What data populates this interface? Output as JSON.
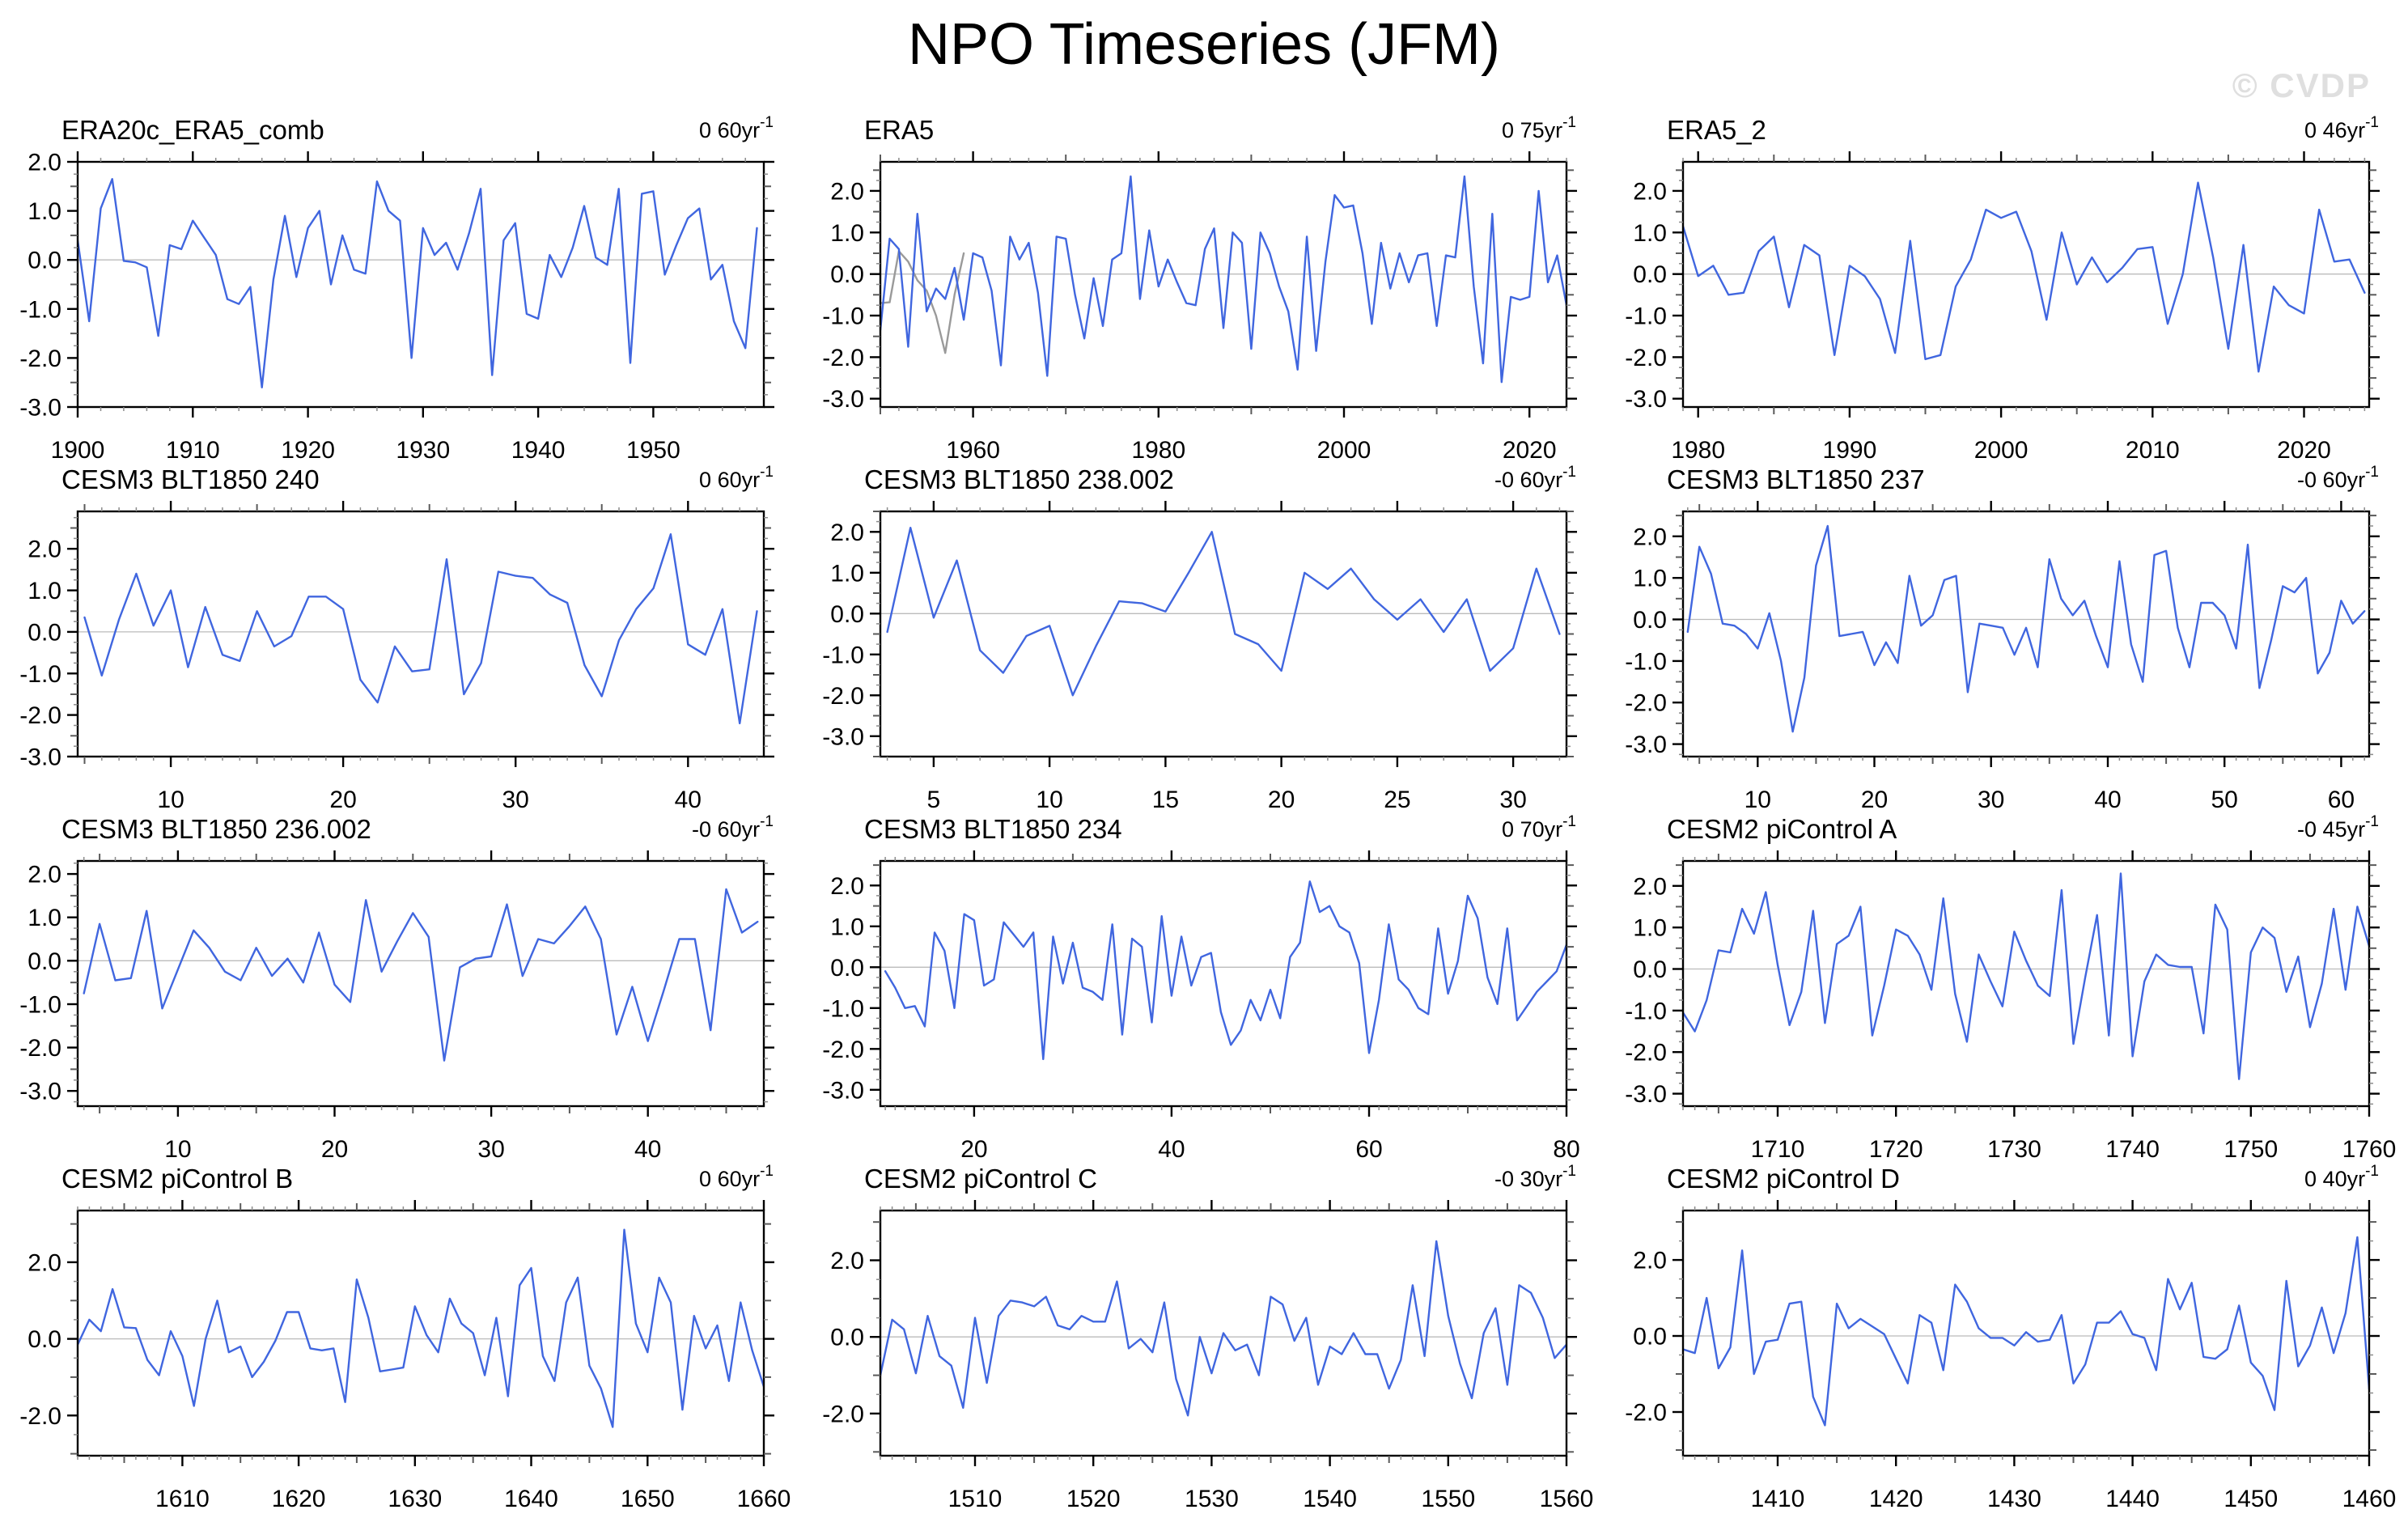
{
  "header": {
    "title": "NPO Timeseries (JFM)",
    "watermark": "© CVDP"
  },
  "colors": {
    "line": "#4066DF",
    "line_secondary": "#9A9A9A",
    "zero_line": "#BBBBBB",
    "axis": "#000000",
    "tick_minor": "#8C8C8C",
    "tick_medium": "#5A5A5A",
    "text": "#000000",
    "watermark": "#DFDFDF",
    "background": "#FFFFFF"
  },
  "chart_data": [
    {
      "type": "line",
      "title": "ERA20c_ERA5_comb",
      "annotation": "0 60yr",
      "annotation_sup": "-1",
      "x_start": 1900,
      "xlim": [
        1900,
        1959.6
      ],
      "ylim": [
        -3.0,
        2.0
      ],
      "x_ticks": [
        1900,
        1910,
        1920,
        1930,
        1940,
        1950
      ],
      "x_minor_step": 2,
      "x_medium_step": null,
      "y_ticks": [
        2,
        1,
        0,
        -1,
        -2,
        -3
      ],
      "y_tick_labels": [
        "2.0",
        "1.0",
        "0.0",
        "-1.0",
        "-2.0",
        "-3.0"
      ],
      "y_minor_step": 0.25,
      "y_medium_step": 0.5,
      "values": [
        0.4,
        -1.25,
        1.05,
        1.65,
        -0.02,
        -0.05,
        -0.15,
        -1.55,
        0.3,
        0.22,
        0.8,
        0.45,
        0.1,
        -0.8,
        -0.9,
        -0.55,
        -2.6,
        -0.4,
        0.9,
        -0.35,
        0.65,
        1.0,
        -0.5,
        0.5,
        -0.2,
        -0.28,
        1.6,
        1.0,
        0.8,
        -2.0,
        0.65,
        0.1,
        0.35,
        -0.2,
        0.55,
        1.45,
        -2.35,
        0.4,
        0.75,
        -1.1,
        -1.2,
        0.1,
        -0.35,
        0.25,
        1.1,
        0.05,
        -0.1,
        1.45,
        -2.1,
        1.35,
        1.4,
        -0.3,
        0.3,
        0.85,
        1.05,
        -0.4,
        -0.1,
        -1.25,
        -1.8,
        0.65
      ]
    },
    {
      "type": "line",
      "title": "ERA5",
      "annotation": "0 75yr",
      "annotation_sup": "-1",
      "x_start": 1950,
      "xlim": [
        1950,
        2024
      ],
      "ylim": [
        -3.2,
        2.7
      ],
      "x_ticks": [
        1960,
        1980,
        2000,
        2020
      ],
      "x_minor_step": 2,
      "x_medium_step": 10,
      "y_ticks": [
        2,
        1,
        0,
        -1,
        -2,
        -3
      ],
      "y_tick_labels": [
        "2.0",
        "1.0",
        "0.0",
        "-1.0",
        "-2.0",
        "-3.0"
      ],
      "y_minor_step": 0.25,
      "y_medium_step": 0.5,
      "values": [
        -1.35,
        0.85,
        0.6,
        -1.75,
        1.45,
        -0.9,
        -0.35,
        -0.6,
        0.15,
        -1.1,
        0.5,
        0.4,
        -0.4,
        -2.2,
        0.9,
        0.35,
        0.75,
        -0.45,
        -2.45,
        0.9,
        0.85,
        -0.5,
        -1.55,
        -0.1,
        -1.25,
        0.35,
        0.5,
        2.35,
        -0.6,
        1.05,
        -0.3,
        0.35,
        -0.2,
        -0.7,
        -0.75,
        0.6,
        1.1,
        -1.3,
        1.0,
        0.75,
        -1.8,
        1.0,
        0.5,
        -0.3,
        -0.9,
        -2.3,
        0.9,
        -1.85,
        0.3,
        1.9,
        1.6,
        1.65,
        0.5,
        -1.2,
        0.75,
        -0.35,
        0.5,
        -0.2,
        0.45,
        0.5,
        -1.25,
        0.45,
        0.4,
        2.35,
        -0.3,
        -2.15,
        1.45,
        -2.6,
        -0.55,
        -0.62,
        -0.55,
        2.0,
        -0.2,
        0.45,
        -0.75
      ],
      "series2": {
        "x_start": 1950,
        "values": [
          -0.7,
          -0.68,
          0.55,
          0.3,
          -0.15,
          -0.4,
          -1.0,
          -1.9,
          -0.5,
          0.5
        ]
      }
    },
    {
      "type": "line",
      "title": "ERA5_2",
      "annotation": "0 46yr",
      "annotation_sup": "-1",
      "x_start": 1979,
      "xlim": [
        1979,
        2024.3
      ],
      "ylim": [
        -3.2,
        2.7
      ],
      "x_ticks": [
        1980,
        1990,
        2000,
        2010,
        2020
      ],
      "x_minor_step": 1,
      "x_medium_step": 5,
      "y_ticks": [
        2,
        1,
        0,
        -1,
        -2,
        -3
      ],
      "y_tick_labels": [
        "2.0",
        "1.0",
        "0.0",
        "-1.0",
        "-2.0",
        "-3.0"
      ],
      "y_minor_step": 0.25,
      "y_medium_step": 0.5,
      "values": [
        1.15,
        -0.05,
        0.2,
        -0.5,
        -0.45,
        0.55,
        0.9,
        -0.8,
        0.7,
        0.45,
        -1.95,
        0.2,
        -0.05,
        -0.6,
        -1.9,
        0.8,
        -2.05,
        -1.95,
        -0.3,
        0.35,
        1.55,
        1.35,
        1.5,
        0.55,
        -1.1,
        1.0,
        -0.25,
        0.4,
        -0.2,
        0.15,
        0.6,
        0.65,
        -1.2,
        0.0,
        2.2,
        0.4,
        -1.8,
        0.7,
        -2.35,
        -0.3,
        -0.75,
        -0.95,
        1.55,
        0.3,
        0.35,
        -0.45
      ]
    },
    {
      "type": "line",
      "title": "CESM3 BLT1850 240",
      "annotation": "0 60yr",
      "annotation_sup": "-1",
      "x_start": 5,
      "xlim": [
        4.6,
        44.4
      ],
      "ylim": [
        -3.0,
        2.9
      ],
      "x_ticks": [
        10,
        20,
        30,
        40
      ],
      "x_minor_step": 1,
      "x_medium_step": 5,
      "y_ticks": [
        2,
        1,
        0,
        -1,
        -2,
        -3
      ],
      "y_tick_labels": [
        "2.0",
        "1.0",
        "0.0",
        "-1.0",
        "-2.0",
        "-3.0"
      ],
      "y_minor_step": 0.25,
      "y_medium_step": 0.5,
      "values": [
        0.35,
        -1.05,
        0.3,
        1.4,
        0.15,
        1.0,
        -0.85,
        0.6,
        -0.55,
        -0.7,
        0.5,
        -0.35,
        -0.1,
        0.85,
        0.85,
        0.55,
        -1.15,
        -1.7,
        -0.35,
        -0.95,
        -0.9,
        1.75,
        -1.5,
        -0.75,
        1.45,
        1.35,
        1.3,
        0.9,
        0.7,
        -0.8,
        -1.55,
        -0.2,
        0.55,
        1.05,
        2.35,
        -0.3,
        -0.55,
        0.55,
        -2.2,
        0.5
      ]
    },
    {
      "type": "line",
      "title": "CESM3 BLT1850 238.002",
      "annotation": "-0 60yr",
      "annotation_sup": "-1",
      "x_start": 3,
      "xlim": [
        2.7,
        32.3
      ],
      "ylim": [
        -3.5,
        2.5
      ],
      "x_ticks": [
        5,
        10,
        15,
        20,
        25,
        30
      ],
      "x_minor_step": 1,
      "x_medium_step": null,
      "y_ticks": [
        2,
        1,
        0,
        -1,
        -2,
        -3
      ],
      "y_tick_labels": [
        "2.0",
        "1.0",
        "0.0",
        "-1.0",
        "-2.0",
        "-3.0"
      ],
      "y_minor_step": 0.25,
      "y_medium_step": 0.5,
      "values": [
        -0.45,
        2.1,
        -0.1,
        1.3,
        -0.9,
        -1.45,
        -0.55,
        -0.3,
        -2.0,
        -0.8,
        0.3,
        0.25,
        0.05,
        1.0,
        2.0,
        -0.5,
        -0.75,
        -1.4,
        1.0,
        0.6,
        1.1,
        0.35,
        -0.15,
        0.35,
        -0.45,
        0.35,
        -1.4,
        -0.85,
        1.1,
        -0.5
      ]
    },
    {
      "type": "line",
      "title": "CESM3 BLT1850 237",
      "annotation": "-0 60yr",
      "annotation_sup": "-1",
      "x_start": 4,
      "xlim": [
        3.6,
        62.4
      ],
      "ylim": [
        -3.3,
        2.6
      ],
      "x_ticks": [
        10,
        20,
        30,
        40,
        50,
        60
      ],
      "x_minor_step": 1,
      "x_medium_step": 5,
      "y_ticks": [
        2,
        1,
        0,
        -1,
        -2,
        -3
      ],
      "y_tick_labels": [
        "2.0",
        "1.0",
        "0.0",
        "-1.0",
        "-2.0",
        "-3.0"
      ],
      "y_minor_step": 0.25,
      "y_medium_step": 0.5,
      "values": [
        -0.3,
        1.75,
        1.1,
        -0.1,
        -0.15,
        -0.35,
        -0.7,
        0.15,
        -1.0,
        -2.7,
        -1.4,
        1.3,
        2.25,
        -0.4,
        -0.35,
        -0.3,
        -1.1,
        -0.55,
        -1.05,
        1.05,
        -0.15,
        0.1,
        0.95,
        1.05,
        -1.75,
        -0.1,
        -0.15,
        -0.2,
        -0.85,
        -0.2,
        -1.15,
        1.45,
        0.5,
        0.1,
        0.45,
        -0.4,
        -1.15,
        1.4,
        -0.6,
        -1.5,
        1.55,
        1.65,
        -0.2,
        -1.15,
        0.4,
        0.4,
        0.1,
        -0.7,
        1.8,
        -1.65,
        -0.5,
        0.8,
        0.65,
        1.0,
        -1.3,
        -0.8,
        0.45,
        -0.1,
        0.2
      ]
    },
    {
      "type": "line",
      "title": "CESM3 BLT1850 236.002",
      "annotation": "-0 60yr",
      "annotation_sup": "-1",
      "x_start": 4,
      "xlim": [
        3.6,
        47.4
      ],
      "ylim": [
        -3.35,
        2.3
      ],
      "x_ticks": [
        10,
        20,
        30,
        40
      ],
      "x_minor_step": 1,
      "x_medium_step": 5,
      "y_ticks": [
        2,
        1,
        0,
        -1,
        -2,
        -3
      ],
      "y_tick_labels": [
        "2.0",
        "1.0",
        "0.0",
        "-1.0",
        "-2.0",
        "-3.0"
      ],
      "y_minor_step": 0.25,
      "y_medium_step": 0.5,
      "values": [
        -0.75,
        0.85,
        -0.45,
        -0.4,
        1.15,
        -1.1,
        -0.2,
        0.7,
        0.3,
        -0.25,
        -0.45,
        0.3,
        -0.35,
        0.05,
        -0.5,
        0.65,
        -0.55,
        -0.95,
        1.4,
        -0.25,
        0.45,
        1.1,
        0.55,
        -2.3,
        -0.15,
        0.05,
        0.1,
        1.3,
        -0.35,
        0.5,
        0.4,
        0.8,
        1.25,
        0.5,
        -1.7,
        -0.6,
        -1.85,
        -0.7,
        0.5,
        0.5,
        -1.6,
        1.65,
        0.65,
        0.9
      ]
    },
    {
      "type": "line",
      "title": "CESM3 BLT1850 234",
      "annotation": "0 70yr",
      "annotation_sup": "-1",
      "x_start": 11,
      "xlim": [
        10.5,
        80
      ],
      "ylim": [
        -3.4,
        2.6
      ],
      "x_ticks": [
        20,
        40,
        60,
        80
      ],
      "x_minor_step": 1,
      "x_medium_step": 10,
      "y_ticks": [
        2,
        1,
        0,
        -1,
        -2,
        -3
      ],
      "y_tick_labels": [
        "2.0",
        "1.0",
        "0.0",
        "-1.0",
        "-2.0",
        "-3.0"
      ],
      "y_minor_step": 0.25,
      "y_medium_step": 0.5,
      "values": [
        -0.1,
        -0.5,
        -1.0,
        -0.95,
        -1.45,
        0.85,
        0.4,
        -1.0,
        1.3,
        1.15,
        -0.45,
        -0.3,
        1.1,
        0.8,
        0.5,
        0.85,
        -2.25,
        0.75,
        -0.4,
        0.6,
        -0.5,
        -0.6,
        -0.8,
        1.05,
        -1.65,
        0.7,
        0.5,
        -1.35,
        1.25,
        -0.7,
        0.75,
        -0.45,
        0.25,
        0.35,
        -1.1,
        -1.9,
        -1.55,
        -0.8,
        -1.3,
        -0.55,
        -1.25,
        0.25,
        0.6,
        2.1,
        1.35,
        1.5,
        1.0,
        0.85,
        0.1,
        -2.1,
        -0.8,
        1.05,
        -0.3,
        -0.55,
        -1.0,
        -1.15,
        0.95,
        -0.65,
        0.15,
        1.75,
        1.2,
        -0.25,
        -0.9,
        0.95,
        -1.3,
        -0.95,
        -0.6,
        -0.35,
        -0.1,
        0.55
      ]
    },
    {
      "type": "line",
      "title": "CESM2 piControl A",
      "annotation": "-0 45yr",
      "annotation_sup": "-1",
      "x_start": 1702,
      "xlim": [
        1702,
        1760
      ],
      "ylim": [
        -3.3,
        2.6
      ],
      "x_ticks": [
        1710,
        1720,
        1730,
        1740,
        1750,
        1760
      ],
      "x_minor_step": 1,
      "x_medium_step": 5,
      "y_ticks": [
        2,
        1,
        0,
        -1,
        -2,
        -3
      ],
      "y_tick_labels": [
        "2.0",
        "1.0",
        "0.0",
        "-1.0",
        "-2.0",
        "-3.0"
      ],
      "y_minor_step": 0.25,
      "y_medium_step": 0.5,
      "values": [
        -1.05,
        -1.5,
        -0.75,
        0.45,
        0.4,
        1.45,
        0.85,
        1.85,
        0.1,
        -1.35,
        -0.55,
        1.4,
        -1.3,
        0.6,
        0.8,
        1.5,
        -1.6,
        -0.4,
        0.95,
        0.8,
        0.35,
        -0.5,
        1.7,
        -0.6,
        -1.75,
        0.35,
        -0.3,
        -0.9,
        0.9,
        0.2,
        -0.4,
        -0.65,
        1.9,
        -1.8,
        -0.2,
        1.3,
        -1.6,
        2.3,
        -2.1,
        -0.3,
        0.35,
        0.1,
        0.05,
        0.05,
        -1.55,
        1.55,
        0.95,
        -2.65,
        0.4,
        1.0,
        0.75,
        -0.55,
        0.3,
        -1.4,
        -0.35,
        1.45,
        -0.5,
        1.5,
        0.55
      ]
    },
    {
      "type": "line",
      "title": "CESM2 piControl B",
      "annotation": "0 60yr",
      "annotation_sup": "-1",
      "x_start": 1601,
      "xlim": [
        1601,
        1660
      ],
      "ylim": [
        -3.05,
        3.35
      ],
      "x_ticks": [
        1610,
        1620,
        1630,
        1640,
        1650,
        1660
      ],
      "x_minor_step": 1,
      "x_medium_step": 5,
      "y_ticks": [
        2,
        0,
        -2
      ],
      "y_tick_labels": [
        "2.0",
        "0.0",
        "-2.0"
      ],
      "y_minor_step": 0.5,
      "y_medium_step": 1.0,
      "values": [
        -0.15,
        0.5,
        0.2,
        1.3,
        0.3,
        0.28,
        -0.55,
        -0.95,
        0.2,
        -0.45,
        -1.75,
        0.0,
        1.0,
        -0.35,
        -0.2,
        -1.0,
        -0.6,
        -0.05,
        0.7,
        0.7,
        -0.25,
        -0.3,
        -0.25,
        -1.65,
        1.55,
        0.55,
        -0.85,
        -0.8,
        -0.75,
        0.85,
        0.1,
        -0.35,
        1.05,
        0.4,
        0.15,
        -0.95,
        0.55,
        -1.5,
        1.4,
        1.85,
        -0.45,
        -1.1,
        0.95,
        1.6,
        -0.7,
        -1.3,
        -2.3,
        2.85,
        0.4,
        -0.35,
        1.6,
        0.95,
        -1.85,
        0.6,
        -0.25,
        0.35,
        -1.1,
        0.95,
        -0.3,
        -1.25
      ]
    },
    {
      "type": "line",
      "title": "CESM2 piControl C",
      "annotation": "-0 30yr",
      "annotation_sup": "-1",
      "x_start": 1502,
      "xlim": [
        1502,
        1560
      ],
      "ylim": [
        -3.1,
        3.3
      ],
      "x_ticks": [
        1510,
        1520,
        1530,
        1540,
        1550,
        1560
      ],
      "x_minor_step": 1,
      "x_medium_step": 5,
      "y_ticks": [
        2,
        0,
        -2
      ],
      "y_tick_labels": [
        "2.0",
        "0.0",
        "-2.0"
      ],
      "y_minor_step": 0.5,
      "y_medium_step": 1.0,
      "values": [
        -1.0,
        0.45,
        0.2,
        -0.95,
        0.55,
        -0.5,
        -0.75,
        -1.85,
        0.5,
        -1.2,
        0.55,
        0.95,
        0.9,
        0.8,
        1.05,
        0.3,
        0.2,
        0.55,
        0.4,
        0.4,
        1.45,
        -0.3,
        -0.05,
        -0.4,
        0.9,
        -1.1,
        -2.05,
        0.0,
        -0.95,
        0.1,
        -0.35,
        -0.2,
        -1.0,
        1.05,
        0.85,
        -0.1,
        0.5,
        -1.25,
        -0.25,
        -0.45,
        0.1,
        -0.45,
        -0.45,
        -1.35,
        -0.6,
        1.35,
        -0.5,
        2.5,
        0.55,
        -0.7,
        -1.6,
        0.1,
        0.75,
        -1.25,
        1.35,
        1.15,
        0.5,
        -0.55,
        -0.2
      ]
    },
    {
      "type": "line",
      "title": "CESM2 piControl D",
      "annotation": "0 40yr",
      "annotation_sup": "-1",
      "x_start": 1402,
      "xlim": [
        1402,
        1460
      ],
      "ylim": [
        -3.15,
        3.3
      ],
      "x_ticks": [
        1410,
        1420,
        1430,
        1440,
        1450,
        1460
      ],
      "x_minor_step": 1,
      "x_medium_step": 5,
      "y_ticks": [
        2,
        0,
        -2
      ],
      "y_tick_labels": [
        "2.0",
        "0.0",
        "-2.0"
      ],
      "y_minor_step": 0.5,
      "y_medium_step": 1.0,
      "values": [
        -0.35,
        -0.45,
        1.0,
        -0.85,
        -0.3,
        2.25,
        -1.0,
        -0.15,
        -0.1,
        0.85,
        0.9,
        -1.6,
        -2.35,
        0.85,
        0.2,
        0.45,
        0.25,
        0.05,
        -0.6,
        -1.25,
        0.55,
        0.35,
        -0.9,
        1.35,
        0.9,
        0.2,
        -0.05,
        -0.05,
        -0.25,
        0.1,
        -0.15,
        -0.1,
        0.55,
        -1.25,
        -0.75,
        0.35,
        0.35,
        0.65,
        0.05,
        -0.05,
        -0.9,
        1.5,
        0.7,
        1.4,
        -0.55,
        -0.6,
        -0.35,
        0.8,
        -0.7,
        -1.05,
        -1.95,
        1.45,
        -0.8,
        -0.25,
        0.75,
        -0.45,
        0.6,
        2.6,
        -1.4
      ]
    }
  ]
}
